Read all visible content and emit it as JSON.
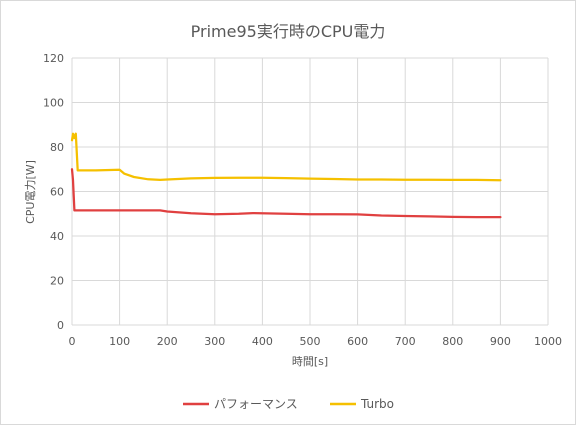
{
  "chart_data": {
    "type": "line",
    "title": "Prime95実行時のCPU電力",
    "xlabel": "時間[s]",
    "ylabel": "CPU電力[W]",
    "xlim": [
      0,
      1000
    ],
    "ylim": [
      0,
      120
    ],
    "xticks": [
      0,
      100,
      200,
      300,
      400,
      500,
      600,
      700,
      800,
      900,
      1000
    ],
    "yticks": [
      0,
      20,
      40,
      60,
      80,
      100,
      120
    ],
    "grid": true,
    "legend_position": "bottom",
    "series": [
      {
        "name": "パフォーマンス",
        "color": "#e04040",
        "x": [
          0,
          2,
          5,
          10,
          50,
          100,
          150,
          185,
          200,
          250,
          300,
          350,
          380,
          450,
          500,
          550,
          600,
          650,
          700,
          750,
          800,
          850,
          900
        ],
        "y": [
          70,
          65,
          51.5,
          51.5,
          51.5,
          51.5,
          51.5,
          51.5,
          51,
          50.2,
          49.8,
          50,
          50.3,
          50,
          49.8,
          49.8,
          49.7,
          49.2,
          49,
          48.8,
          48.6,
          48.5,
          48.5
        ]
      },
      {
        "name": "Turbo",
        "color": "#f5c000",
        "x": [
          0,
          2,
          5,
          8,
          12,
          50,
          100,
          110,
          130,
          160,
          185,
          200,
          250,
          300,
          350,
          400,
          450,
          500,
          550,
          600,
          650,
          700,
          750,
          800,
          850,
          900
        ],
        "y": [
          83,
          86,
          84,
          86,
          69.5,
          69.5,
          69.8,
          68,
          66.5,
          65.5,
          65.2,
          65.4,
          65.9,
          66.1,
          66.2,
          66.2,
          66,
          65.8,
          65.6,
          65.4,
          65.4,
          65.3,
          65.3,
          65.2,
          65.2,
          65.1
        ]
      }
    ]
  }
}
